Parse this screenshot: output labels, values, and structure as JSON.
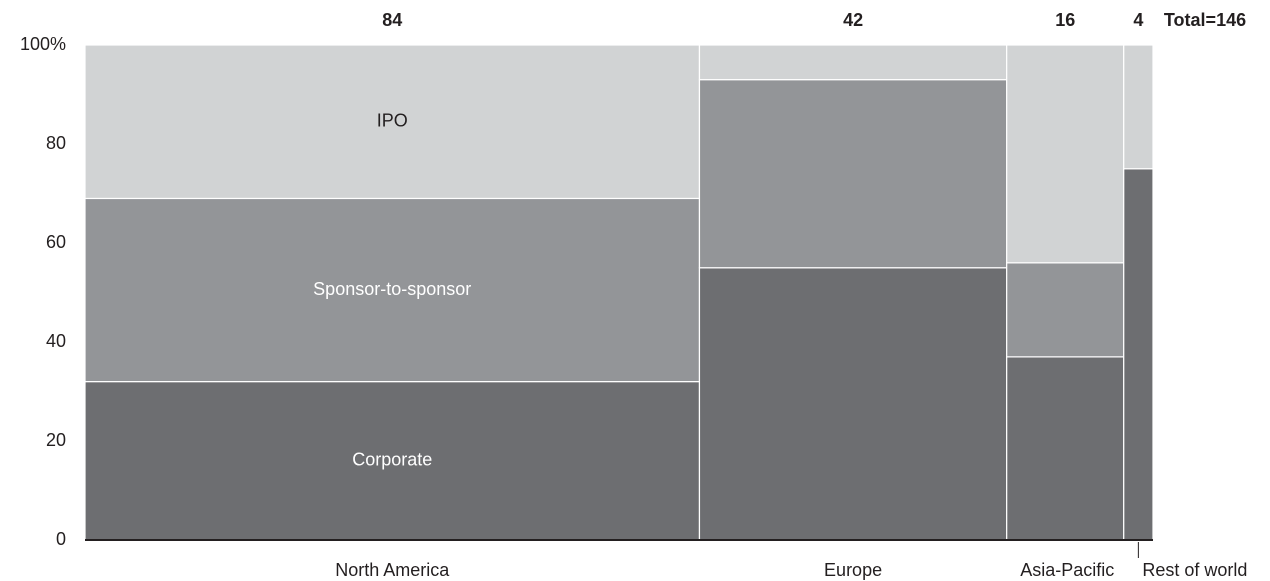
{
  "chart_data": {
    "type": "marimekko",
    "categories": [
      "North America",
      "Europe",
      "Asia-Pacific",
      "Rest of world"
    ],
    "widths": [
      84,
      42,
      16,
      4
    ],
    "total_label": "Total=146",
    "series": [
      {
        "name": "Corporate",
        "color": "#6d6e71",
        "values": [
          32,
          55,
          37,
          75
        ]
      },
      {
        "name": "Sponsor-to-sponsor",
        "color": "#939598",
        "values": [
          37,
          38,
          19,
          0
        ]
      },
      {
        "name": "IPO",
        "color": "#d1d3d4",
        "values": [
          31,
          7,
          44,
          25
        ]
      }
    ],
    "ylim": [
      0,
      100
    ],
    "yticks": [
      0,
      20,
      40,
      60,
      80,
      {
        "value": 100,
        "label": "100%"
      }
    ]
  }
}
